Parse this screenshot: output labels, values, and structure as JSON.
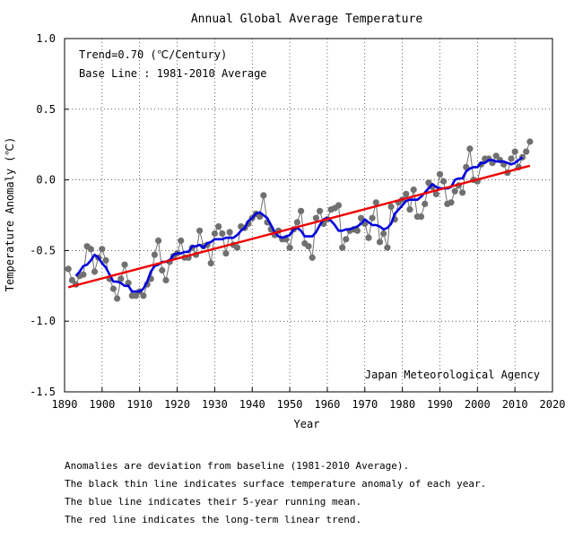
{
  "chart_data": {
    "type": "line",
    "title": "Annual Global Average Temperature",
    "xlabel": "Year",
    "ylabel": "Temperature Anomaly (℃)",
    "xlim": [
      1890,
      2020
    ],
    "ylim": [
      -1.5,
      1.0
    ],
    "x_ticks": [
      "1890",
      "1900",
      "1910",
      "1920",
      "1930",
      "1940",
      "1950",
      "1960",
      "1970",
      "1980",
      "1990",
      "2000",
      "2010",
      "2020"
    ],
    "y_ticks": [
      "1.0",
      "0.5",
      "0.0",
      "-0.5",
      "-1.0",
      "-1.5"
    ],
    "grid": true,
    "annotations": {
      "trend": "Trend=0.70 (℃/Century)",
      "baseline": "Base Line : 1981-2010 Average",
      "source": "Japan Meteorological Agency"
    },
    "series": [
      {
        "color": "#707070",
        "x": [
          1891,
          1892,
          1893,
          1894,
          1895,
          1896,
          1897,
          1898,
          1899,
          1900,
          1901,
          1902,
          1903,
          1904,
          1905,
          1906,
          1907,
          1908,
          1909,
          1910,
          1911,
          1912,
          1913,
          1914,
          1915,
          1916,
          1917,
          1918,
          1919,
          1920,
          1921,
          1922,
          1923,
          1924,
          1925,
          1926,
          1927,
          1928,
          1929,
          1930,
          1931,
          1932,
          1933,
          1934,
          1935,
          1936,
          1937,
          1938,
          1939,
          1940,
          1941,
          1942,
          1943,
          1944,
          1945,
          1946,
          1947,
          1948,
          1949,
          1950,
          1951,
          1952,
          1953,
          1954,
          1955,
          1956,
          1957,
          1958,
          1959,
          1960,
          1961,
          1962,
          1963,
          1964,
          1965,
          1966,
          1967,
          1968,
          1969,
          1970,
          1971,
          1972,
          1973,
          1974,
          1975,
          1976,
          1977,
          1978,
          1979,
          1980,
          1981,
          1982,
          1983,
          1984,
          1985,
          1986,
          1987,
          1988,
          1989,
          1990,
          1991,
          1992,
          1993,
          1994,
          1995,
          1996,
          1997,
          1998,
          1999,
          2000,
          2001,
          2002,
          2003,
          2004,
          2005,
          2006,
          2007,
          2008,
          2009,
          2010,
          2011,
          2012,
          2013,
          2014
        ],
        "values": [
          -0.63,
          -0.71,
          -0.74,
          -0.68,
          -0.67,
          -0.47,
          -0.49,
          -0.65,
          -0.55,
          -0.49,
          -0.57,
          -0.7,
          -0.77,
          -0.84,
          -0.7,
          -0.6,
          -0.73,
          -0.82,
          -0.82,
          -0.79,
          -0.82,
          -0.74,
          -0.7,
          -0.53,
          -0.43,
          -0.64,
          -0.71,
          -0.58,
          -0.54,
          -0.52,
          -0.43,
          -0.55,
          -0.55,
          -0.48,
          -0.53,
          -0.36,
          -0.47,
          -0.46,
          -0.59,
          -0.38,
          -0.33,
          -0.38,
          -0.52,
          -0.37,
          -0.46,
          -0.48,
          -0.33,
          -0.34,
          -0.31,
          -0.27,
          -0.24,
          -0.26,
          -0.11,
          -0.3,
          -0.35,
          -0.39,
          -0.36,
          -0.42,
          -0.42,
          -0.48,
          -0.35,
          -0.3,
          -0.22,
          -0.45,
          -0.47,
          -0.55,
          -0.27,
          -0.22,
          -0.31,
          -0.28,
          -0.21,
          -0.2,
          -0.18,
          -0.48,
          -0.42,
          -0.36,
          -0.35,
          -0.36,
          -0.27,
          -0.31,
          -0.41,
          -0.27,
          -0.16,
          -0.44,
          -0.38,
          -0.48,
          -0.19,
          -0.28,
          -0.16,
          -0.14,
          -0.1,
          -0.21,
          -0.07,
          -0.26,
          -0.26,
          -0.17,
          -0.02,
          -0.05,
          -0.1,
          0.04,
          -0.01,
          -0.17,
          -0.16,
          -0.08,
          -0.04,
          -0.09,
          0.09,
          0.22,
          0.0,
          -0.01,
          0.11,
          0.15,
          0.15,
          0.12,
          0.17,
          0.14,
          0.11,
          0.05,
          0.15,
          0.2,
          0.09,
          0.16,
          0.2,
          0.27
        ]
      },
      {
        "color": "#0000dd",
        "x": [
          1893,
          1894,
          1895,
          1896,
          1897,
          1898,
          1899,
          1900,
          1901,
          1902,
          1903,
          1904,
          1905,
          1906,
          1907,
          1908,
          1909,
          1910,
          1911,
          1912,
          1913,
          1914,
          1915,
          1916,
          1917,
          1918,
          1919,
          1920,
          1921,
          1922,
          1923,
          1924,
          1925,
          1926,
          1927,
          1928,
          1929,
          1930,
          1931,
          1932,
          1933,
          1934,
          1935,
          1936,
          1937,
          1938,
          1939,
          1940,
          1941,
          1942,
          1943,
          1944,
          1945,
          1946,
          1947,
          1948,
          1949,
          1950,
          1951,
          1952,
          1953,
          1954,
          1955,
          1956,
          1957,
          1958,
          1959,
          1960,
          1961,
          1962,
          1963,
          1964,
          1965,
          1966,
          1967,
          1968,
          1969,
          1970,
          1971,
          1972,
          1973,
          1974,
          1975,
          1976,
          1977,
          1978,
          1979,
          1980,
          1981,
          1982,
          1983,
          1984,
          1985,
          1986,
          1987,
          1988,
          1989,
          1990,
          1991,
          1992,
          1993,
          1994,
          1995,
          1996,
          1997,
          1998,
          1999,
          2000,
          2001,
          2002,
          2003,
          2004,
          2005,
          2006,
          2007,
          2008,
          2009,
          2010,
          2011,
          2012
        ],
        "values": [
          -0.68,
          -0.65,
          -0.61,
          -0.6,
          -0.57,
          -0.53,
          -0.55,
          -0.59,
          -0.62,
          -0.67,
          -0.72,
          -0.72,
          -0.73,
          -0.75,
          -0.75,
          -0.79,
          -0.79,
          -0.79,
          -0.77,
          -0.72,
          -0.65,
          -0.61,
          -0.6,
          -0.58,
          -0.58,
          -0.57,
          -0.53,
          -0.52,
          -0.52,
          -0.51,
          -0.51,
          -0.47,
          -0.47,
          -0.46,
          -0.48,
          -0.45,
          -0.44,
          -0.42,
          -0.42,
          -0.42,
          -0.41,
          -0.41,
          -0.41,
          -0.39,
          -0.36,
          -0.34,
          -0.29,
          -0.27,
          -0.24,
          -0.23,
          -0.25,
          -0.27,
          -0.32,
          -0.37,
          -0.4,
          -0.41,
          -0.4,
          -0.39,
          -0.35,
          -0.34,
          -0.36,
          -0.4,
          -0.4,
          -0.4,
          -0.37,
          -0.32,
          -0.28,
          -0.27,
          -0.29,
          -0.32,
          -0.36,
          -0.36,
          -0.35,
          -0.35,
          -0.34,
          -0.33,
          -0.31,
          -0.28,
          -0.3,
          -0.32,
          -0.32,
          -0.33,
          -0.35,
          -0.34,
          -0.31,
          -0.24,
          -0.21,
          -0.18,
          -0.15,
          -0.14,
          -0.14,
          -0.14,
          -0.12,
          -0.09,
          -0.06,
          -0.03,
          -0.05,
          -0.06,
          -0.06,
          -0.06,
          -0.05,
          0.0,
          0.01,
          0.01,
          0.06,
          0.08,
          0.09,
          0.09,
          0.12,
          0.12,
          0.14,
          0.14,
          0.13,
          0.13,
          0.13,
          0.12,
          0.11,
          0.12,
          0.14,
          0.16
        ]
      },
      {
        "color": "#ee0000",
        "x": [
          1891,
          2014
        ],
        "values": [
          -0.76,
          0.1
        ]
      }
    ]
  },
  "notes": {
    "line1": "Anomalies are deviation from baseline (1981-2010 Average).",
    "line2": "The black thin line indicates surface temperature anomaly of each year.",
    "line3": "The blue line indicates their 5-year running mean.",
    "line4": "The red line indicates the long-term linear trend."
  }
}
